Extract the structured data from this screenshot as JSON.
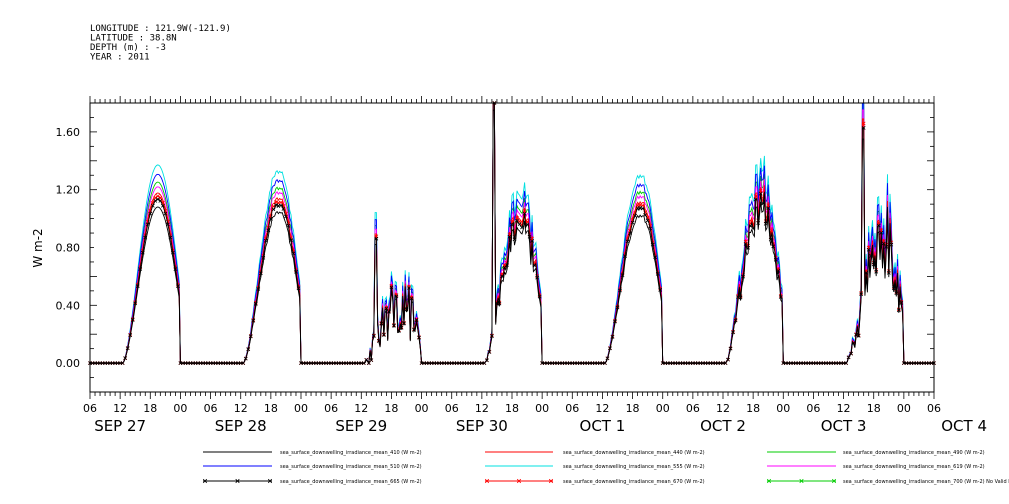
{
  "header": {
    "lines": [
      "LONGITUDE : 121.9W(-121.9)",
      "LATITUDE : 38.8N",
      "DEPTH (m) : -3",
      "YEAR : 2011"
    ]
  },
  "chart_data": {
    "type": "line",
    "title": "",
    "xlabel": "",
    "ylabel": "W m-2",
    "ylim": [
      -0.2,
      1.8
    ],
    "yticks": [
      0.0,
      0.4,
      0.8,
      1.2,
      1.6
    ],
    "ytick_labels": [
      "0.00",
      "0.40",
      "0.80",
      "1.20",
      "1.60"
    ],
    "x_hour_ticks": [
      "06",
      "12",
      "18",
      "00",
      "06",
      "12",
      "18",
      "00",
      "06",
      "12",
      "18",
      "00",
      "06",
      "12",
      "18",
      "00",
      "06",
      "12",
      "18",
      "00",
      "06",
      "12",
      "18",
      "00",
      "06",
      "12",
      "18",
      "00",
      "06"
    ],
    "date_labels": [
      "SEP 27",
      "SEP 28",
      "SEP 29",
      "SEP 30",
      "OCT 1",
      "OCT 2",
      "OCT 3",
      "OCT 4"
    ],
    "x_hours_range": [
      6,
      174
    ],
    "grid": false,
    "legend_position": "bottom",
    "days": [
      {
        "date": "SEP 27",
        "peak": 1.08,
        "noise": 0.0
      },
      {
        "date": "SEP 28",
        "peak": 1.05,
        "noise": 0.02
      },
      {
        "date": "SEP 29",
        "peak": 0.38,
        "noise": 0.2,
        "spike_hour": 14.8,
        "spike": 0.82
      },
      {
        "date": "SEP 30",
        "peak": 0.95,
        "noise": 0.1,
        "spike_hour": 14.3,
        "spike": 1.75
      },
      {
        "date": "OCT 1",
        "peak": 1.03,
        "noise": 0.02
      },
      {
        "date": "OCT 2",
        "peak": 1.05,
        "noise": 0.12
      },
      {
        "date": "OCT 3",
        "peak": 0.85,
        "noise": 0.25,
        "spike_hour": 15.8,
        "spike": 1.55
      }
    ],
    "series": [
      {
        "name": "sea_surface_downwelling_irradiance_mean_410 (W m-2)",
        "color": "#000000",
        "scale": 1.0,
        "marker": "none"
      },
      {
        "name": "sea_surface_downwelling_irradiance_mean_440 (W m-2)",
        "color": "#ff0000",
        "scale": 1.09,
        "marker": "none"
      },
      {
        "name": "sea_surface_downwelling_irradiance_mean_490 (W m-2)",
        "color": "#00cc00",
        "scale": 1.16,
        "marker": "none"
      },
      {
        "name": "sea_surface_downwelling_irradiance_mean_510 (W m-2)",
        "color": "#0000ff",
        "scale": 1.21,
        "marker": "none"
      },
      {
        "name": "sea_surface_downwelling_irradiance_mean_555 (W m-2)",
        "color": "#00e0e0",
        "scale": 1.27,
        "marker": "none"
      },
      {
        "name": "sea_surface_downwelling_irradiance_mean_619 (W m-2)",
        "color": "#ff00ff",
        "scale": 1.13,
        "marker": "none"
      },
      {
        "name": "sea_surface_downwelling_irradiance_mean_665 (W m-2)",
        "color": "#000000",
        "scale": 1.05,
        "marker": "x"
      },
      {
        "name": "sea_surface_downwelling_irradiance_mean_670 (W m-2)",
        "color": "#ff0000",
        "scale": 1.07,
        "marker": "x"
      },
      {
        "name": "sea_surface_downwelling_irradiance_mean_700 (W m-2) No Valid Data",
        "color": "#00cc00",
        "scale": 0.0,
        "marker": "x"
      }
    ]
  }
}
